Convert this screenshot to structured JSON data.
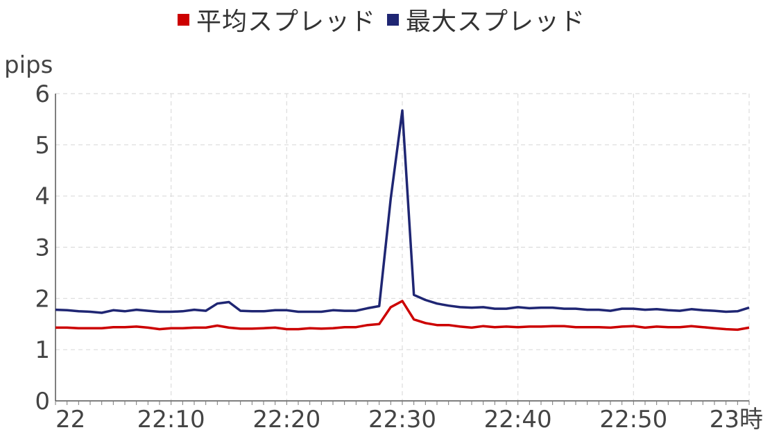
{
  "legend": [
    {
      "label": "平均スプレッド",
      "color": "#cc0000"
    },
    {
      "label": "最大スプレッド",
      "color": "#1f2673"
    }
  ],
  "y_unit": "pips",
  "chart_data": {
    "type": "line",
    "ylim": [
      0,
      6
    ],
    "y_ticks": [
      0,
      1,
      2,
      3,
      4,
      5,
      6
    ],
    "x_range": [
      0,
      60
    ],
    "x_ticks": [
      {
        "value": 0,
        "label": "22"
      },
      {
        "value": 10,
        "label": "22:10"
      },
      {
        "value": 20,
        "label": "22:20"
      },
      {
        "value": 30,
        "label": "22:30"
      },
      {
        "value": 40,
        "label": "22:40"
      },
      {
        "value": 50,
        "label": "22:50"
      },
      {
        "value": 60,
        "label": "23時"
      }
    ],
    "grid": true,
    "legend_position": "top-center",
    "series": [
      {
        "name": "平均スプレッド",
        "color": "#cc0000",
        "x": [
          0,
          1,
          2,
          3,
          4,
          5,
          6,
          7,
          8,
          9,
          10,
          11,
          12,
          13,
          14,
          15,
          16,
          17,
          18,
          19,
          20,
          21,
          22,
          23,
          24,
          25,
          26,
          27,
          28,
          29,
          30,
          31,
          32,
          33,
          34,
          35,
          36,
          37,
          38,
          39,
          40,
          41,
          42,
          43,
          44,
          45,
          46,
          47,
          48,
          49,
          50,
          51,
          52,
          53,
          54,
          55,
          56,
          57,
          58,
          59,
          60
        ],
        "values": [
          1.43,
          1.43,
          1.42,
          1.42,
          1.42,
          1.44,
          1.44,
          1.45,
          1.43,
          1.4,
          1.42,
          1.42,
          1.43,
          1.43,
          1.47,
          1.43,
          1.41,
          1.41,
          1.42,
          1.43,
          1.4,
          1.4,
          1.42,
          1.41,
          1.42,
          1.44,
          1.44,
          1.48,
          1.5,
          1.83,
          1.95,
          1.59,
          1.52,
          1.48,
          1.48,
          1.45,
          1.43,
          1.46,
          1.44,
          1.45,
          1.44,
          1.45,
          1.45,
          1.46,
          1.46,
          1.44,
          1.44,
          1.44,
          1.43,
          1.45,
          1.46,
          1.43,
          1.45,
          1.44,
          1.44,
          1.46,
          1.44,
          1.42,
          1.4,
          1.39,
          1.43
        ]
      },
      {
        "name": "最大スプレッド",
        "color": "#1f2673",
        "x": [
          0,
          1,
          2,
          3,
          4,
          5,
          6,
          7,
          8,
          9,
          10,
          11,
          12,
          13,
          14,
          15,
          16,
          17,
          18,
          19,
          20,
          21,
          22,
          23,
          24,
          25,
          26,
          27,
          28,
          29,
          30,
          31,
          32,
          33,
          34,
          35,
          36,
          37,
          38,
          39,
          40,
          41,
          42,
          43,
          44,
          45,
          46,
          47,
          48,
          49,
          50,
          51,
          52,
          53,
          54,
          55,
          56,
          57,
          58,
          59,
          60
        ],
        "values": [
          1.78,
          1.77,
          1.75,
          1.74,
          1.72,
          1.77,
          1.75,
          1.78,
          1.76,
          1.74,
          1.74,
          1.75,
          1.78,
          1.76,
          1.9,
          1.93,
          1.76,
          1.75,
          1.75,
          1.77,
          1.77,
          1.74,
          1.74,
          1.74,
          1.77,
          1.76,
          1.76,
          1.81,
          1.85,
          3.95,
          5.67,
          2.07,
          1.97,
          1.9,
          1.86,
          1.83,
          1.82,
          1.83,
          1.8,
          1.8,
          1.83,
          1.81,
          1.82,
          1.82,
          1.8,
          1.8,
          1.78,
          1.78,
          1.76,
          1.8,
          1.8,
          1.78,
          1.79,
          1.77,
          1.76,
          1.79,
          1.77,
          1.76,
          1.74,
          1.75,
          1.82
        ]
      }
    ]
  }
}
